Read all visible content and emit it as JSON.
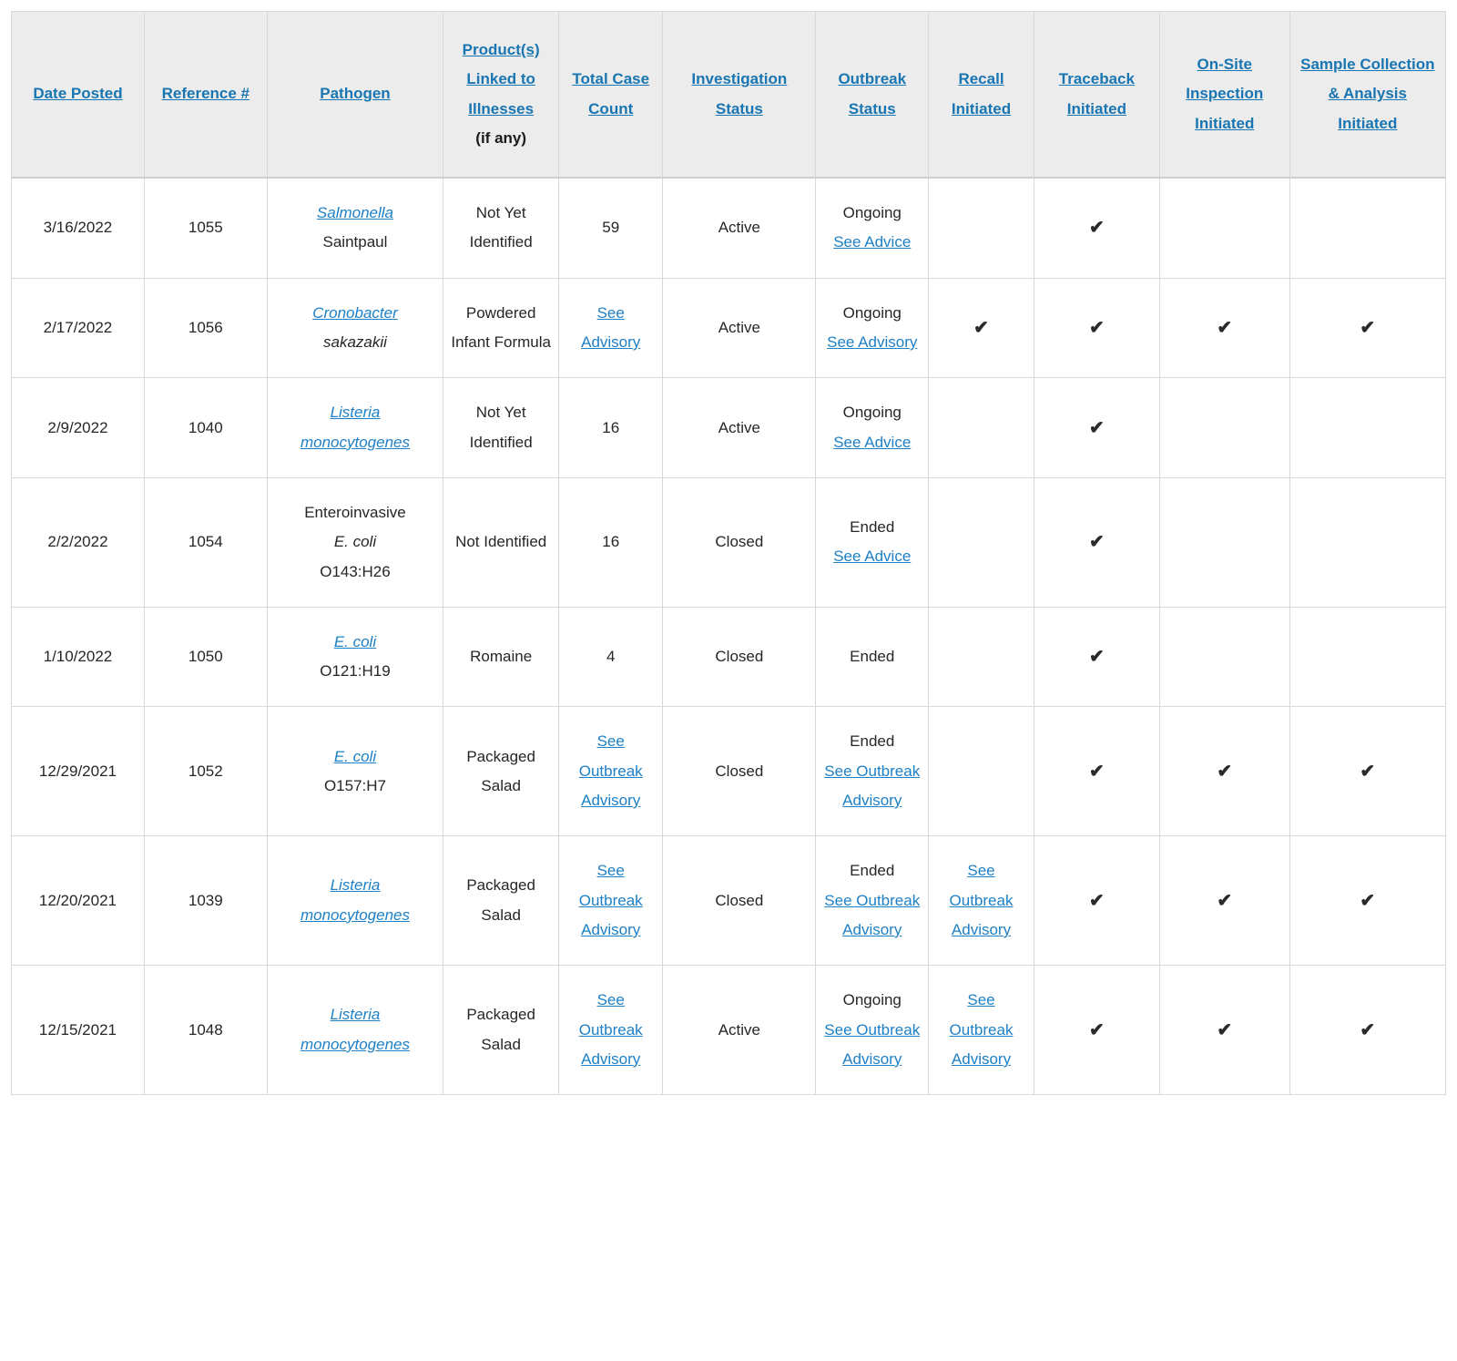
{
  "colors": {
    "header_link": "#1976b2",
    "body_link": "#1e80c6",
    "header_bg": "#ececec",
    "border": "#d9d9d9",
    "text": "#262626",
    "check": "#2a2a2a"
  },
  "table": {
    "check_glyph": "✔",
    "headers": [
      {
        "id": "date-posted",
        "label": "Date Posted"
      },
      {
        "id": "reference",
        "label": "Reference #"
      },
      {
        "id": "pathogen",
        "label": "Pathogen"
      },
      {
        "id": "product",
        "label": "Product(s) Linked to Illnesses",
        "suffix": "(if any)"
      },
      {
        "id": "total-case-count",
        "label": "Total Case Count"
      },
      {
        "id": "investigation-status",
        "label": "Investigation Status"
      },
      {
        "id": "outbreak-status",
        "label": "Outbreak Status"
      },
      {
        "id": "recall",
        "label": "Recall Initiated"
      },
      {
        "id": "traceback",
        "label": "Traceback Initiated"
      },
      {
        "id": "onsite-inspection",
        "label": "On-Site Inspection Initiated"
      },
      {
        "id": "sample-collection",
        "label": "Sample Collection & Analysis Initiated"
      }
    ],
    "rows": [
      {
        "cells": [
          [
            {
              "t": "3/16/2022"
            }
          ],
          [
            {
              "t": "1055"
            }
          ],
          [
            {
              "t": "Salmonella",
              "s": "li"
            },
            {
              "t": "Saintpaul",
              "nl": true
            }
          ],
          [
            {
              "t": "Not Yet Identified"
            }
          ],
          [
            {
              "t": "59"
            }
          ],
          [
            {
              "t": "Active"
            }
          ],
          [
            {
              "t": "Ongoing"
            },
            {
              "t": "See Advice",
              "s": "l",
              "nl": true
            }
          ],
          [],
          [
            {
              "s": "c"
            }
          ],
          [],
          []
        ]
      },
      {
        "cells": [
          [
            {
              "t": "2/17/2022"
            }
          ],
          [
            {
              "t": "1056"
            }
          ],
          [
            {
              "t": "Cronobacter",
              "s": "li"
            },
            {
              "t": "sakazakii",
              "s": "i",
              "nl": true
            }
          ],
          [
            {
              "t": "Powdered Infant Formula"
            }
          ],
          [
            {
              "t": "See Advisory",
              "s": "l"
            }
          ],
          [
            {
              "t": "Active"
            }
          ],
          [
            {
              "t": "Ongoing"
            },
            {
              "t": "See Advisory",
              "s": "l",
              "nl": true
            }
          ],
          [
            {
              "s": "c"
            }
          ],
          [
            {
              "s": "c"
            }
          ],
          [
            {
              "s": "c"
            }
          ],
          [
            {
              "s": "c"
            }
          ]
        ]
      },
      {
        "cells": [
          [
            {
              "t": "2/9/2022"
            }
          ],
          [
            {
              "t": "1040"
            }
          ],
          [
            {
              "t": "Listeria monocytogenes",
              "s": "li"
            }
          ],
          [
            {
              "t": "Not Yet Identified"
            }
          ],
          [
            {
              "t": "16"
            }
          ],
          [
            {
              "t": "Active"
            }
          ],
          [
            {
              "t": "Ongoing"
            },
            {
              "t": "See Advice",
              "s": "l",
              "nl": true
            }
          ],
          [],
          [
            {
              "s": "c"
            }
          ],
          [],
          []
        ]
      },
      {
        "cells": [
          [
            {
              "t": "2/2/2022"
            }
          ],
          [
            {
              "t": "1054"
            }
          ],
          [
            {
              "t": "Enteroinvasive"
            },
            {
              "t": "E. coli",
              "s": "i",
              "nl": true
            },
            {
              "t": "O143:H26",
              "nl": true
            }
          ],
          [
            {
              "t": "Not Identified"
            }
          ],
          [
            {
              "t": "16"
            }
          ],
          [
            {
              "t": "Closed"
            }
          ],
          [
            {
              "t": "Ended"
            },
            {
              "t": "See Advice",
              "s": "l",
              "nl": true
            }
          ],
          [],
          [
            {
              "s": "c"
            }
          ],
          [],
          []
        ]
      },
      {
        "cells": [
          [
            {
              "t": "1/10/2022"
            }
          ],
          [
            {
              "t": "1050"
            }
          ],
          [
            {
              "t": "E. coli",
              "s": "li"
            },
            {
              "t": "O121:H19",
              "nl": true
            }
          ],
          [
            {
              "t": "Romaine"
            }
          ],
          [
            {
              "t": "4"
            }
          ],
          [
            {
              "t": "Closed"
            }
          ],
          [
            {
              "t": "Ended"
            }
          ],
          [],
          [
            {
              "s": "c"
            }
          ],
          [],
          []
        ]
      },
      {
        "cells": [
          [
            {
              "t": "12/29/2021"
            }
          ],
          [
            {
              "t": "1052"
            }
          ],
          [
            {
              "t": "E. coli",
              "s": "li"
            },
            {
              "t": "O157:H7",
              "nl": true
            }
          ],
          [
            {
              "t": "Packaged Salad"
            }
          ],
          [
            {
              "t": "See Outbreak Advisory",
              "s": "l"
            }
          ],
          [
            {
              "t": "Closed"
            }
          ],
          [
            {
              "t": "Ended"
            },
            {
              "t": "See Outbreak Advisory",
              "s": "l",
              "nl": true
            }
          ],
          [],
          [
            {
              "s": "c"
            }
          ],
          [
            {
              "s": "c"
            }
          ],
          [
            {
              "s": "c"
            }
          ]
        ]
      },
      {
        "cells": [
          [
            {
              "t": "12/20/2021"
            }
          ],
          [
            {
              "t": "1039"
            }
          ],
          [
            {
              "t": "Listeria monocytogenes",
              "s": "li"
            }
          ],
          [
            {
              "t": "Packaged Salad"
            }
          ],
          [
            {
              "t": "See Outbreak Advisory",
              "s": "l"
            }
          ],
          [
            {
              "t": "Closed"
            }
          ],
          [
            {
              "t": "Ended"
            },
            {
              "t": "See Outbreak Advisory",
              "s": "l",
              "nl": true
            }
          ],
          [
            {
              "t": "See Outbreak Advisory",
              "s": "l"
            }
          ],
          [
            {
              "s": "c"
            }
          ],
          [
            {
              "s": "c"
            }
          ],
          [
            {
              "s": "c"
            }
          ]
        ]
      },
      {
        "cells": [
          [
            {
              "t": "12/15/2021"
            }
          ],
          [
            {
              "t": "1048"
            }
          ],
          [
            {
              "t": "Listeria monocytogenes",
              "s": "li"
            }
          ],
          [
            {
              "t": "Packaged Salad"
            }
          ],
          [
            {
              "t": "See Outbreak Advisory",
              "s": "l"
            }
          ],
          [
            {
              "t": "Active"
            }
          ],
          [
            {
              "t": "Ongoing"
            },
            {
              "t": "See Outbreak Advisory",
              "s": "l",
              "nl": true
            }
          ],
          [
            {
              "t": "See Outbreak Advisory",
              "s": "l"
            }
          ],
          [
            {
              "s": "c"
            }
          ],
          [
            {
              "s": "c"
            }
          ],
          [
            {
              "s": "c"
            }
          ]
        ]
      }
    ]
  }
}
